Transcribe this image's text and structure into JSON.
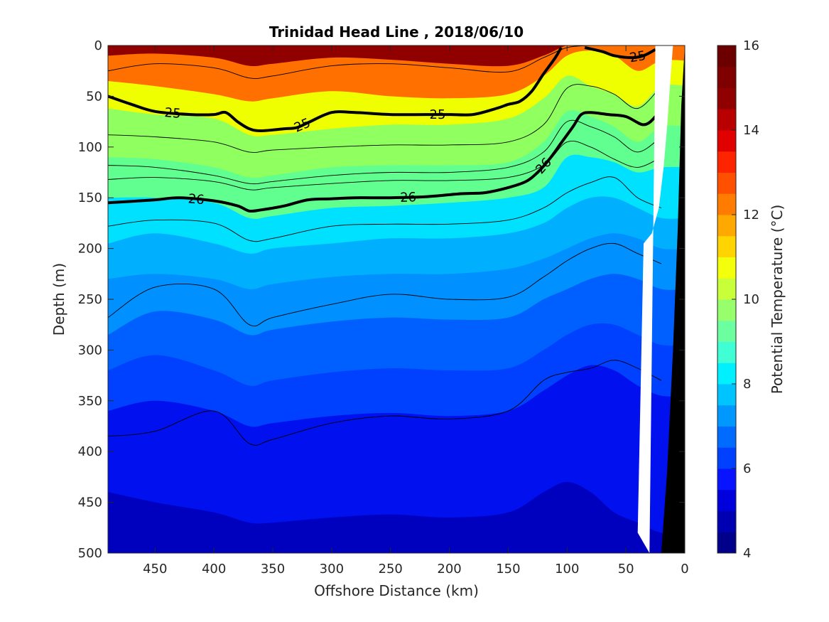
{
  "chart_data": {
    "type": "heatmap",
    "title": "Trinidad Head Line , 2018/06/10",
    "xlabel": "Offshore Distance (km)",
    "ylabel": "Depth (m)",
    "colorbar_label": "Potential Temperature (°C)",
    "xlim": [
      490,
      0
    ],
    "ylim": [
      0,
      500
    ],
    "x_reversed": true,
    "y_reversed": true,
    "x_ticks": [
      450,
      400,
      350,
      300,
      250,
      200,
      150,
      100,
      50,
      0
    ],
    "y_ticks": [
      0,
      50,
      100,
      150,
      200,
      250,
      300,
      350,
      400,
      450,
      500
    ],
    "clim": [
      4,
      16
    ],
    "colorbar_ticks": [
      4,
      6,
      8,
      10,
      12,
      14,
      16
    ],
    "colormap": [
      "#00008f",
      "#0000bf",
      "#0010ef",
      "#0040ff",
      "#0060ff",
      "#0090ff",
      "#00b0ff",
      "#00e0ff",
      "#40ffe0",
      "#60ff90",
      "#90ff60",
      "#c0ff40",
      "#f0ff00",
      "#ffd000",
      "#ffa000",
      "#ff7000",
      "#ff4000",
      "#f01000",
      "#c00000",
      "#900000"
    ],
    "colorbar_colors": [
      "#00008b",
      "#0000b3",
      "#0000dc",
      "#0814ff",
      "#0040ff",
      "#006cff",
      "#0098ff",
      "#00c4ff",
      "#00f0ff",
      "#40ffd4",
      "#6cffa0",
      "#98ff6c",
      "#c8ff38",
      "#f4ff0c",
      "#ffd400",
      "#ffa800",
      "#ff7c00",
      "#ff5000",
      "#ff2400",
      "#e00000",
      "#b80000",
      "#900000",
      "#800000",
      "#6c0000"
    ],
    "distance_km": [
      490,
      450,
      400,
      370,
      350,
      300,
      250,
      200,
      150,
      120,
      100,
      80,
      60,
      40,
      20
    ],
    "isotherms_c": [
      {
        "temp": 14,
        "depths_m": [
          10,
          8,
          12,
          20,
          18,
          12,
          14,
          18,
          20,
          10,
          0,
          0,
          0,
          0,
          0
        ]
      },
      {
        "temp": 12,
        "depths_m": [
          35,
          40,
          48,
          55,
          52,
          45,
          50,
          52,
          48,
          30,
          10,
          5,
          10,
          25,
          15
        ]
      },
      {
        "temp": 11,
        "depths_m": [
          62,
          68,
          72,
          88,
          88,
          82,
          78,
          78,
          72,
          52,
          30,
          40,
          48,
          60,
          40
        ]
      },
      {
        "temp": 10,
        "depths_m": [
          110,
          112,
          120,
          130,
          128,
          120,
          118,
          118,
          115,
          95,
          65,
          70,
          80,
          95,
          80
        ]
      },
      {
        "temp": 9,
        "depths_m": [
          150,
          150,
          155,
          170,
          168,
          160,
          158,
          155,
          150,
          140,
          110,
          110,
          115,
          125,
          120
        ]
      },
      {
        "temp": 8,
        "depths_m": [
          195,
          185,
          195,
          205,
          200,
          195,
          190,
          190,
          185,
          175,
          160,
          150,
          150,
          160,
          170
        ]
      },
      {
        "temp": 7.5,
        "depths_m": [
          230,
          225,
          230,
          240,
          235,
          228,
          225,
          225,
          220,
          210,
          200,
          190,
          185,
          190,
          200
        ]
      },
      {
        "temp": 7,
        "depths_m": [
          285,
          262,
          270,
          285,
          280,
          272,
          268,
          270,
          268,
          250,
          240,
          230,
          225,
          230,
          240
        ]
      },
      {
        "temp": 6.5,
        "depths_m": [
          320,
          305,
          320,
          335,
          330,
          322,
          318,
          320,
          318,
          300,
          285,
          275,
          275,
          285,
          295
        ]
      },
      {
        "temp": 6,
        "depths_m": [
          360,
          350,
          360,
          375,
          372,
          365,
          362,
          365,
          360,
          340,
          325,
          315,
          320,
          335,
          345
        ]
      },
      {
        "temp": 5.5,
        "depths_m": [
          395,
          392,
          400,
          410,
          408,
          402,
          398,
          402,
          400,
          385,
          370,
          365,
          370,
          390,
          400
        ]
      },
      {
        "temp": 5,
        "depths_m": [
          440,
          450,
          460,
          470,
          470,
          465,
          462,
          465,
          460,
          440,
          430,
          440,
          460,
          470,
          480
        ]
      }
    ],
    "density_contours": [
      {
        "label": "25",
        "x_km": [
          490,
          470,
          450,
          420,
          400,
          390,
          380,
          370,
          360,
          340,
          330,
          320,
          300,
          280,
          250,
          220,
          200,
          180,
          160,
          150,
          140,
          130,
          120,
          110,
          105
        ],
        "depths_m": [
          50,
          58,
          65,
          68,
          68,
          66,
          75,
          82,
          84,
          82,
          81,
          76,
          66,
          66,
          68,
          68,
          68,
          68,
          62,
          58,
          55,
          45,
          28,
          12,
          2
        ]
      },
      {
        "label": "25",
        "x_km": [
          85,
          70,
          60,
          45,
          35,
          25
        ],
        "depths_m": [
          2,
          6,
          10,
          12,
          10,
          4
        ]
      },
      {
        "label": "26",
        "x_km": [
          490,
          450,
          430,
          400,
          380,
          370,
          360,
          340,
          320,
          300,
          280,
          250,
          220,
          190,
          170,
          150,
          135,
          125,
          115,
          105,
          95,
          88,
          80,
          65,
          50,
          35,
          25,
          20
        ],
        "depths_m": [
          155,
          152,
          150,
          153,
          158,
          163,
          162,
          158,
          152,
          151,
          150,
          150,
          149,
          146,
          145,
          140,
          134,
          125,
          112,
          96,
          80,
          68,
          66,
          68,
          70,
          78,
          70,
          58
        ]
      }
    ],
    "thin_contours": [
      {
        "x_km": [
          490,
          450,
          400,
          370,
          350,
          300,
          250,
          200,
          150,
          120,
          100,
          80,
          60,
          40,
          20
        ],
        "depths_m": [
          88,
          90,
          95,
          105,
          103,
          100,
          98,
          98,
          95,
          78,
          42,
          40,
          48,
          62,
          40
        ]
      },
      {
        "x_km": [
          490,
          450,
          400,
          370,
          350,
          300,
          250,
          200,
          150,
          120,
          100,
          80,
          60,
          40,
          20
        ],
        "depths_m": [
          118,
          120,
          128,
          136,
          134,
          128,
          125,
          125,
          120,
          105,
          75,
          80,
          90,
          105,
          90
        ]
      },
      {
        "x_km": [
          490,
          450,
          400,
          370,
          350,
          300,
          250,
          200,
          150,
          120,
          100,
          80,
          60,
          40,
          20
        ],
        "depths_m": [
          132,
          130,
          134,
          142,
          140,
          136,
          133,
          133,
          130,
          118,
          95,
          100,
          112,
          120,
          110
        ]
      },
      {
        "x_km": [
          490,
          450,
          400,
          370,
          350,
          300,
          250,
          200,
          150,
          120,
          100,
          80,
          60,
          40,
          20
        ],
        "depths_m": [
          178,
          172,
          175,
          192,
          190,
          178,
          176,
          176,
          172,
          160,
          145,
          135,
          130,
          150,
          160
        ]
      },
      {
        "x_km": [
          490,
          450,
          400,
          370,
          350,
          300,
          250,
          200,
          150,
          120,
          100,
          80,
          60,
          40,
          20
        ],
        "depths_m": [
          268,
          238,
          240,
          275,
          268,
          255,
          245,
          250,
          248,
          228,
          212,
          200,
          195,
          205,
          215
        ]
      },
      {
        "x_km": [
          490,
          450,
          400,
          370,
          350,
          300,
          250,
          200,
          150,
          120,
          100,
          80,
          60,
          40,
          20
        ],
        "depths_m": [
          385,
          380,
          360,
          392,
          388,
          372,
          365,
          368,
          360,
          330,
          322,
          318,
          310,
          318,
          330
        ]
      },
      {
        "x_km": [
          490,
          450,
          400,
          370,
          350,
          300,
          250,
          200,
          150,
          120,
          100,
          80,
          60,
          40,
          20
        ],
        "depths_m": [
          25,
          18,
          22,
          32,
          30,
          20,
          18,
          22,
          26,
          12,
          2,
          0,
          0,
          0,
          0
        ]
      }
    ],
    "bottom_topography": {
      "x_km": [
        20,
        15,
        10,
        6,
        3,
        0
      ],
      "depths_m": [
        500,
        420,
        300,
        180,
        60,
        0
      ]
    },
    "blank_region": {
      "x_km": [
        30,
        40,
        35,
        28,
        22,
        18,
        15,
        12,
        10,
        25
      ],
      "depths_m": [
        500,
        480,
        195,
        185,
        160,
        120,
        80,
        30,
        0,
        0
      ]
    }
  }
}
